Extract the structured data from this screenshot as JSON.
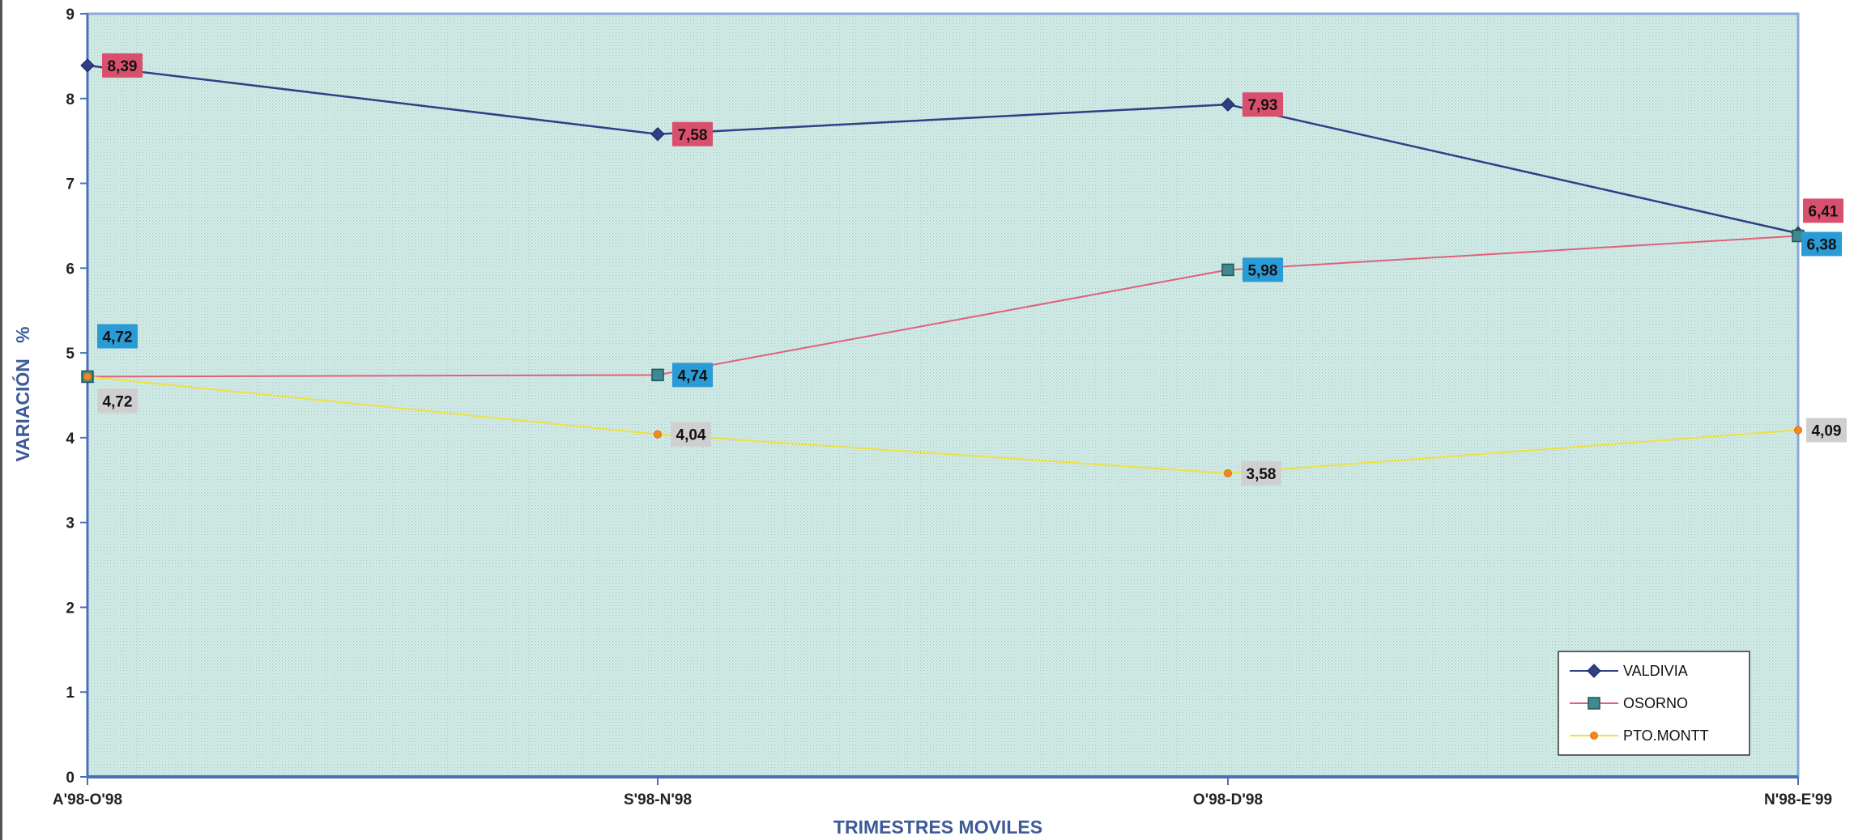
{
  "chart_data": {
    "type": "line",
    "title": "",
    "xlabel": "TRIMESTRES MOVILES",
    "ylabel": "VARIACIÓN   %",
    "ylim": [
      0,
      9
    ],
    "yticks": [
      "0",
      "1",
      "2",
      "3",
      "4",
      "5",
      "6",
      "7",
      "8",
      "9"
    ],
    "categories": [
      "A'98-O'98",
      "S'98-N'98",
      "O'98-D'98",
      "N'98-E'99"
    ],
    "legend_position": "bottom-right",
    "grid": false,
    "series": [
      {
        "name": "VALDIVIA",
        "values": [
          8.39,
          7.58,
          7.93,
          6.41
        ],
        "labels": [
          "8,39",
          "7,58",
          "7,93",
          "6,41"
        ],
        "color": "#2e3f86",
        "label_bg": "#d9506f",
        "marker": "diamond"
      },
      {
        "name": "OSORNO",
        "values": [
          4.72,
          4.74,
          5.98,
          6.38
        ],
        "labels": [
          "4,72",
          "4,74",
          "5,98",
          "6,38"
        ],
        "color": "#e0607a",
        "label_bg": "#2b9bd6",
        "marker": "square"
      },
      {
        "name": "PTO.MONTT",
        "values": [
          4.72,
          4.04,
          3.58,
          4.09
        ],
        "labels": [
          "4,72",
          "4,04",
          "3,58",
          "4,09"
        ],
        "color": "#f0e040",
        "label_bg": "#cfcfcf",
        "marker": "dot"
      }
    ]
  }
}
